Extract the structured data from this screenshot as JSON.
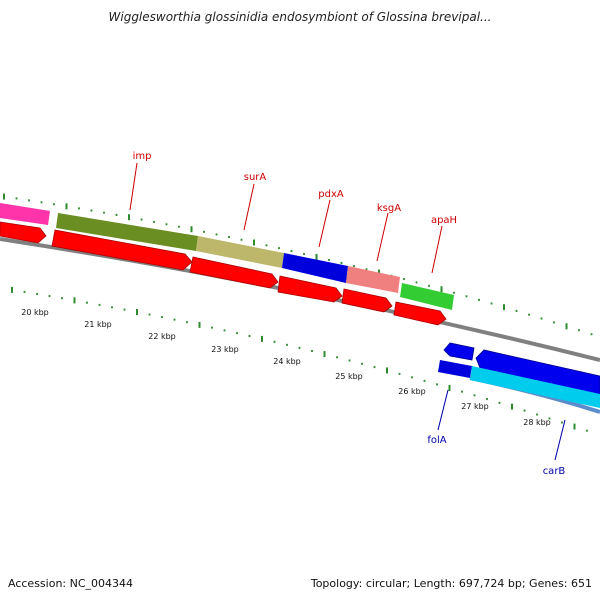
{
  "title": "Wigglesworthia glossinidia endosymbiont of Glossina brevipal...",
  "footer": {
    "accession": "Accession: NC_004344",
    "summary": "Topology: circular; Length: 697,724 bp; Genes: 651"
  },
  "axis": {
    "labels": [
      "20 kbp",
      "21 kbp",
      "22 kbp",
      "23 kbp",
      "24 kbp",
      "25 kbp",
      "26 kbp",
      "27 kbp",
      "28 kbp"
    ]
  },
  "genes": {
    "imp": {
      "label": "imp",
      "color": "#cc0000"
    },
    "surA": {
      "label": "surA",
      "color": "#cc0000"
    },
    "pdxA": {
      "label": "pdxA",
      "color": "#cc0000"
    },
    "ksgA": {
      "label": "ksgA",
      "color": "#cc0000"
    },
    "apaH": {
      "label": "apaH",
      "color": "#cc0000"
    },
    "folA": {
      "label": "folA",
      "color": "#0000aa"
    },
    "carB": {
      "label": "carB",
      "color": "#0000aa"
    }
  },
  "colors": {
    "backbone": "#7a7a7a",
    "tick": "#2e8b2e",
    "forward_cds": "#ff0000",
    "reverse_cds": "#0000ee",
    "pink": "#ff33aa",
    "olive": "#6b8e23",
    "khaki": "#bdb76b",
    "blue": "#0000dd",
    "salmon": "#f08080",
    "green": "#33cc33",
    "cyan": "#00ccee",
    "steel": "#5b8ccc"
  }
}
